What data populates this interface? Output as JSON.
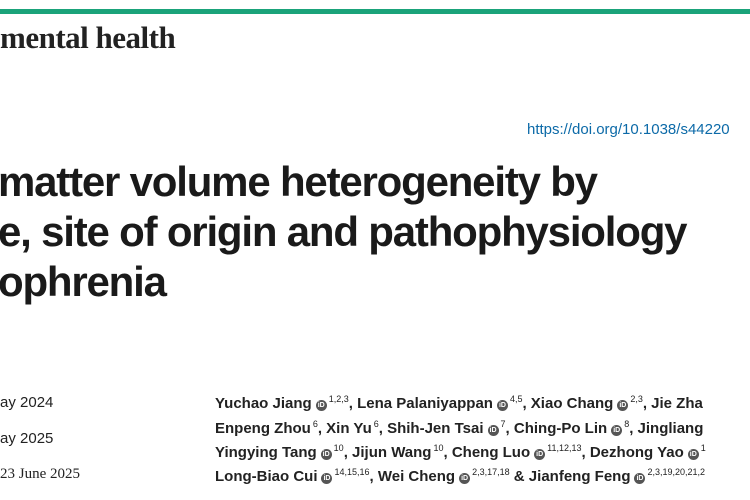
{
  "header": {
    "journal": "mental health",
    "doi": "https://doi.org/10.1038/s44220"
  },
  "title": {
    "lines": [
      "matter volume heterogeneity by",
      "e, site of origin and pathophysiology",
      "ophrenia"
    ]
  },
  "dates": [
    "ay 2024",
    "ay 2025",
    "23 June 2025"
  ],
  "authors": {
    "lines": [
      [
        {
          "text": "Yuchao Jiang",
          "orcid": true,
          "sup": "1,2,3"
        },
        {
          "text": ", Lena Palaniyappan",
          "orcid": true,
          "sup": "4,5"
        },
        {
          "text": ", Xiao Chang",
          "orcid": true,
          "sup": "2,3"
        },
        {
          "text": ", Jie Zha"
        }
      ],
      [
        {
          "text": "Enpeng Zhou",
          "sup": "6"
        },
        {
          "text": ", Xin Yu",
          "sup": "6"
        },
        {
          "text": ", Shih-Jen Tsai",
          "orcid": true,
          "sup": "7"
        },
        {
          "text": ", Ching-Po Lin",
          "orcid": true,
          "sup": "8"
        },
        {
          "text": ", Jingliang"
        }
      ],
      [
        {
          "text": "Yingying Tang",
          "orcid": true,
          "sup": "10"
        },
        {
          "text": ", Jijun Wang",
          "sup": "10"
        },
        {
          "text": ", Cheng Luo",
          "orcid": true,
          "sup": "11,12,13"
        },
        {
          "text": ", Dezhong Yao",
          "orcid": true,
          "sup": "1"
        }
      ],
      [
        {
          "text": "Long-Biao Cui",
          "orcid": true,
          "sup": "14,15,16"
        },
        {
          "text": ", Wei Cheng",
          "orcid": true,
          "sup": "2,3,17,18"
        },
        {
          "text": " & Jianfeng Feng",
          "orcid": true,
          "sup": "2,3,19,20,21,2"
        }
      ]
    ]
  }
}
